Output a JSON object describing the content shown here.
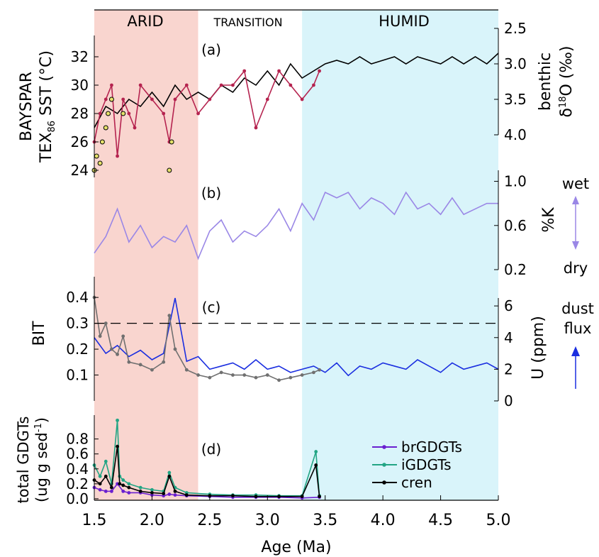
{
  "chart_data": {
    "type": "line",
    "xlabel": "Age (Ma)",
    "xlim": [
      1.5,
      5.0
    ],
    "xticks": [
      "1.5",
      "2.0",
      "2.5",
      "3.0",
      "3.5",
      "4.0",
      "4.5",
      "5.0"
    ],
    "zones": [
      {
        "label": "ARID",
        "from": 1.5,
        "to": 2.4,
        "color": "#f9d5cf"
      },
      {
        "label": "TRANSITION",
        "from": 2.4,
        "to": 3.3,
        "color": "#ffffff"
      },
      {
        "label": "HUMID",
        "from": 3.3,
        "to": 5.0,
        "color": "#d9f4fa"
      }
    ],
    "panels": [
      {
        "label": "(a)",
        "left_axis": {
          "title_line1": "BAYSPAR",
          "title_line2_main": "TEX",
          "title_line2_sub": "86",
          "title_line2_rest": " SST (°C)",
          "range": [
            23.5,
            33.5
          ],
          "ticks": [
            "24",
            "26",
            "28",
            "30",
            "32"
          ]
        },
        "right_axis": {
          "title_line1": "benthic",
          "title_line2_main": "δ",
          "title_line2_sup": "18",
          "title_line2_rest": "O (‰)",
          "range": [
            2.5,
            4.0
          ],
          "inverted": true,
          "ticks": [
            "2.5",
            "3.0",
            "3.5",
            "4.0"
          ]
        },
        "series": [
          {
            "axis": "right",
            "color": "#000000",
            "kind": "line",
            "x": [
              1.5,
              1.6,
              1.7,
              1.8,
              1.9,
              2.0,
              2.1,
              2.2,
              2.3,
              2.4,
              2.5,
              2.6,
              2.7,
              2.8,
              2.9,
              3.0,
              3.1,
              3.2,
              3.3,
              3.4,
              3.5,
              3.6,
              3.7,
              3.8,
              3.9,
              4.0,
              4.1,
              4.2,
              4.3,
              4.4,
              4.5,
              4.6,
              4.7,
              4.8,
              4.9,
              5.0
            ],
            "y": [
              3.9,
              3.6,
              3.7,
              3.5,
              3.6,
              3.4,
              3.6,
              3.3,
              3.5,
              3.4,
              3.5,
              3.3,
              3.4,
              3.2,
              3.3,
              3.1,
              3.3,
              3.0,
              3.2,
              3.1,
              3.0,
              2.95,
              3.0,
              2.9,
              3.0,
              2.95,
              2.9,
              3.0,
              2.9,
              2.95,
              3.0,
              2.9,
              3.0,
              2.9,
              3.0,
              2.85
            ]
          },
          {
            "axis": "left",
            "color": "#b5234f",
            "kind": "line-markers",
            "x": [
              1.5,
              1.55,
              1.6,
              1.65,
              1.7,
              1.75,
              1.8,
              1.85,
              1.9,
              2.0,
              2.1,
              2.15,
              2.2,
              2.3,
              2.4,
              2.5,
              2.6,
              2.7,
              2.8,
              2.9,
              3.0,
              3.1,
              3.2,
              3.3,
              3.4,
              3.45
            ],
            "y": [
              26,
              28,
              29,
              30,
              25,
              29,
              28,
              27,
              30,
              29,
              28,
              26,
              29,
              30,
              28,
              29,
              30,
              30,
              31,
              27,
              29,
              31,
              30,
              29,
              30,
              31
            ]
          },
          {
            "axis": "left",
            "color": "#e6e26b",
            "kind": "markers",
            "x": [
              1.5,
              1.52,
              1.55,
              1.57,
              1.6,
              1.62,
              1.65,
              1.75,
              2.15,
              2.17
            ],
            "y": [
              24,
              25,
              24.5,
              26,
              27,
              28,
              29,
              28,
              24,
              26
            ]
          }
        ]
      },
      {
        "label": "(b)",
        "right_axis": {
          "title": "%K",
          "range": [
            0.2,
            1.1
          ],
          "ticks": [
            "0.2",
            "0.6",
            "1.0"
          ]
        },
        "annotation_top": "wet",
        "annotation_bottom": "dry",
        "arrow_color": "#9a87e6",
        "series": [
          {
            "axis": "right",
            "color": "#9a87e6",
            "kind": "line",
            "x": [
              1.5,
              1.6,
              1.7,
              1.8,
              1.9,
              2.0,
              2.1,
              2.2,
              2.3,
              2.4,
              2.5,
              2.6,
              2.7,
              2.8,
              2.9,
              3.0,
              3.1,
              3.2,
              3.3,
              3.4,
              3.5,
              3.6,
              3.7,
              3.8,
              3.9,
              4.0,
              4.1,
              4.2,
              4.3,
              4.4,
              4.5,
              4.6,
              4.7,
              4.8,
              4.9,
              5.0
            ],
            "y": [
              0.35,
              0.5,
              0.75,
              0.45,
              0.6,
              0.4,
              0.5,
              0.45,
              0.6,
              0.3,
              0.55,
              0.65,
              0.45,
              0.55,
              0.5,
              0.6,
              0.75,
              0.55,
              0.8,
              0.65,
              0.9,
              0.85,
              0.9,
              0.75,
              0.85,
              0.8,
              0.7,
              0.9,
              0.75,
              0.8,
              0.7,
              0.85,
              0.7,
              0.75,
              0.8,
              0.8
            ]
          }
        ]
      },
      {
        "label": "(c)",
        "left_axis": {
          "title": "BIT",
          "range": [
            0.0,
            0.48
          ],
          "ticks": [
            "0.1",
            "0.2",
            "0.3",
            "0.4"
          ]
        },
        "right_axis": {
          "title": "U (ppm)",
          "range": [
            0,
            6.5
          ],
          "ticks": [
            "0",
            "2",
            "4",
            "6"
          ]
        },
        "reference_line": {
          "axis": "left",
          "y": 0.3,
          "style": "dashed"
        },
        "annotation_line1": "dust",
        "annotation_line2": "flux",
        "arrow_color": "#1a2ee0",
        "series": [
          {
            "axis": "right",
            "color": "#1a2ee0",
            "kind": "line",
            "x": [
              1.5,
              1.6,
              1.7,
              1.8,
              1.9,
              2.0,
              2.1,
              2.2,
              2.3,
              2.4,
              2.5,
              2.6,
              2.7,
              2.8,
              2.9,
              3.0,
              3.1,
              3.2,
              3.3,
              3.4,
              3.5,
              3.6,
              3.7,
              3.8,
              3.9,
              4.0,
              4.1,
              4.2,
              4.3,
              4.4,
              4.5,
              4.6,
              4.7,
              4.8,
              4.9,
              5.0
            ],
            "y": [
              4.0,
              3.0,
              3.5,
              2.8,
              3.2,
              2.6,
              3.0,
              6.5,
              2.5,
              2.8,
              2.0,
              2.2,
              2.4,
              2.0,
              2.6,
              2.0,
              2.2,
              1.8,
              2.0,
              2.2,
              1.8,
              2.4,
              1.6,
              2.2,
              2.0,
              2.4,
              2.2,
              2.0,
              2.6,
              2.2,
              1.8,
              2.4,
              2.0,
              2.2,
              2.4,
              2.0
            ]
          },
          {
            "axis": "left",
            "color": "#707070",
            "kind": "line-markers",
            "x": [
              1.5,
              1.55,
              1.6,
              1.65,
              1.7,
              1.75,
              1.8,
              1.9,
              2.0,
              2.1,
              2.15,
              2.2,
              2.3,
              2.4,
              2.5,
              2.6,
              2.7,
              2.8,
              2.9,
              3.0,
              3.1,
              3.2,
              3.3,
              3.4,
              3.45
            ],
            "y": [
              0.4,
              0.25,
              0.3,
              0.2,
              0.18,
              0.25,
              0.15,
              0.14,
              0.12,
              0.15,
              0.33,
              0.2,
              0.12,
              0.1,
              0.09,
              0.11,
              0.1,
              0.1,
              0.09,
              0.1,
              0.08,
              0.09,
              0.1,
              0.11,
              0.12
            ]
          }
        ]
      },
      {
        "label": "(d)",
        "left_axis": {
          "title_line1": "total GDGTs",
          "title_line2_main": "(ug g sed",
          "title_line2_sup": "-1",
          "title_line2_rest": ")",
          "range": [
            -0.02,
            1.12
          ],
          "ticks": [
            "0.0",
            "0.2",
            "0.4",
            "0.6",
            "0.8"
          ]
        },
        "legend_position": "right",
        "series": [
          {
            "name": "brGDGTs",
            "color": "#6a1fd0",
            "kind": "line-markers",
            "x": [
              1.5,
              1.55,
              1.6,
              1.65,
              1.7,
              1.75,
              1.8,
              1.9,
              2.0,
              2.1,
              2.15,
              2.2,
              2.3,
              2.5,
              2.7,
              2.9,
              3.1,
              3.3,
              3.45
            ],
            "y": [
              0.15,
              0.12,
              0.1,
              0.1,
              0.2,
              0.1,
              0.08,
              0.08,
              0.05,
              0.04,
              0.06,
              0.05,
              0.04,
              0.03,
              0.02,
              0.02,
              0.02,
              0.01,
              0.02
            ]
          },
          {
            "name": "iGDGTs",
            "color": "#22a584",
            "kind": "line-markers",
            "x": [
              1.5,
              1.55,
              1.6,
              1.65,
              1.7,
              1.72,
              1.75,
              1.8,
              1.9,
              2.0,
              2.1,
              2.15,
              2.2,
              2.3,
              2.5,
              2.7,
              2.9,
              3.1,
              3.3,
              3.42,
              3.45
            ],
            "y": [
              0.45,
              0.3,
              0.5,
              0.2,
              1.05,
              0.3,
              0.25,
              0.2,
              0.15,
              0.12,
              0.1,
              0.35,
              0.15,
              0.08,
              0.06,
              0.05,
              0.05,
              0.04,
              0.04,
              0.63,
              0.04
            ]
          },
          {
            "name": "cren",
            "color": "#000000",
            "kind": "line-markers",
            "x": [
              1.5,
              1.55,
              1.6,
              1.65,
              1.7,
              1.72,
              1.75,
              1.8,
              1.9,
              2.0,
              2.1,
              2.15,
              2.2,
              2.3,
              2.5,
              2.7,
              2.9,
              3.1,
              3.3,
              3.42,
              3.45
            ],
            "y": [
              0.25,
              0.2,
              0.3,
              0.15,
              0.7,
              0.2,
              0.18,
              0.15,
              0.1,
              0.08,
              0.07,
              0.3,
              0.1,
              0.05,
              0.04,
              0.04,
              0.03,
              0.03,
              0.03,
              0.45,
              0.03
            ]
          }
        ]
      }
    ]
  }
}
